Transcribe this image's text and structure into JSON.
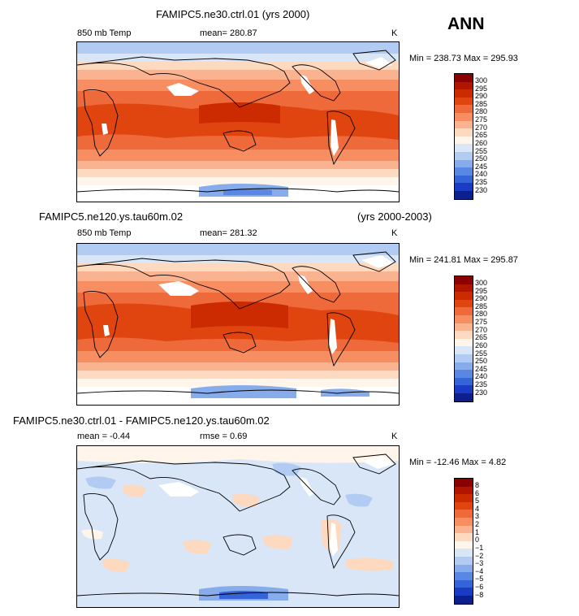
{
  "season": "ANN",
  "panels": [
    {
      "title": "FAMIPC5.ne30.ctrl.01 (yrs 2000)",
      "title_right": "",
      "left_label": "850 mb Temp",
      "center_label": "mean= 280.87",
      "unit": "K",
      "minmax": "Min = 238.73  Max = 295.93",
      "contour_levels": [
        "300",
        "295",
        "290",
        "285",
        "280",
        "275",
        "270",
        "265",
        "260",
        "255",
        "250",
        "245",
        "240",
        "235",
        "230"
      ]
    },
    {
      "title": "FAMIPC5.ne120.ys.tau60m.02",
      "title_right": "(yrs 2000-2003)",
      "left_label": "850 mb Temp",
      "center_label": "mean= 281.32",
      "unit": "K",
      "minmax": "Min = 241.81  Max = 295.87",
      "contour_levels": [
        "300",
        "295",
        "290",
        "285",
        "280",
        "275",
        "270",
        "265",
        "260",
        "255",
        "250",
        "245",
        "240",
        "235",
        "230"
      ]
    },
    {
      "title": "FAMIPC5.ne30.ctrl.01 - FAMIPC5.ne120.ys.tau60m.02",
      "title_right": "",
      "left_label": "mean =   -0.44",
      "center_label": "rmse =    0.69",
      "unit": "K",
      "minmax": "Min = -12.46  Max =    4.82",
      "contour_levels": [
        "8",
        "6",
        "5",
        "4",
        "3",
        "2",
        "1",
        "0",
        "−1",
        "−2",
        "−3",
        "−4",
        "−5",
        "−6",
        "−8"
      ]
    }
  ],
  "colors": {
    "abs_scale": [
      "#8b0000",
      "#b01500",
      "#cc2a00",
      "#e04510",
      "#ef6a3a",
      "#f78e62",
      "#fab390",
      "#fdd9c0",
      "#fff5ea",
      "#d8e6f8",
      "#b1cbf2",
      "#86aceb",
      "#5a87e3",
      "#3564d8",
      "#1a3cc4",
      "#0d1f8c"
    ],
    "diff_scale": [
      "#8b0000",
      "#b01500",
      "#cc2a00",
      "#e04510",
      "#ef6a3a",
      "#f78e62",
      "#fab390",
      "#fdd9c0",
      "#fff5ea",
      "#d8e6f8",
      "#b1cbf2",
      "#86aceb",
      "#5a87e3",
      "#3564d8",
      "#1a3cc4",
      "#0d1f8c"
    ]
  }
}
